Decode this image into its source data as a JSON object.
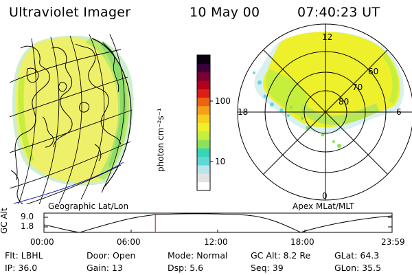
{
  "header": {
    "instrument": "Ultraviolet Imager",
    "date": "10 May 00",
    "time": "07:40:23 UT"
  },
  "left_panel": {
    "caption": "Geographic Lat/Lon"
  },
  "right_panel": {
    "caption": "Apex MLat/MLT",
    "mlt_labels": [
      "12",
      "18",
      "6",
      "0"
    ],
    "lat_labels": [
      "60",
      "70",
      "80"
    ]
  },
  "colorbar": {
    "unit_label": "photon cm⁻²s⁻¹",
    "tick_labels": [
      "100",
      "10"
    ],
    "colors": [
      "#ffffff",
      "#e3e3e3",
      "#b8e6ee",
      "#61d8d8",
      "#35d6b4",
      "#8ce25a",
      "#c6ee3c",
      "#eef02c",
      "#f6d020",
      "#f4a018",
      "#ec6410",
      "#dc1e14",
      "#b0001c",
      "#780034",
      "#3a003c",
      "#0a0010"
    ]
  },
  "timeline": {
    "axis_label": "GC Alt",
    "y_ticks": [
      "9.0",
      "1.8"
    ],
    "x_ticks": [
      "00:00",
      "06:00",
      "12:00",
      "18:00",
      "23:59"
    ],
    "current_time": "07:40:23",
    "marker_color": "#e00000"
  },
  "info": {
    "flt": "Flt: LBHL",
    "ip": "IP: 36.0",
    "door": "Door: Open",
    "gain": "Gain: 13",
    "mode": "Mode: Normal",
    "dsp": "Dsp:     5.6",
    "gcalt": "GC Alt: 8.2 Re",
    "seq": "Seq: 39",
    "glat": "GLat:  64.3",
    "glon": "GLon:  35.5"
  }
}
